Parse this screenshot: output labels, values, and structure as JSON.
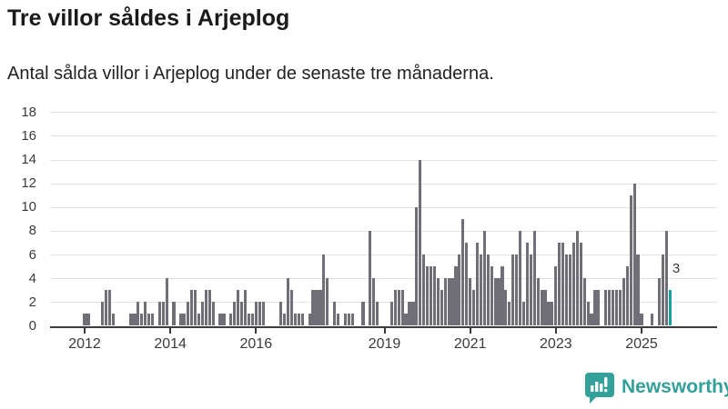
{
  "header": {
    "title": "Tre villor såldes i Arjeplog",
    "subtitle": "Antal sålda villor i Arjeplog under de senaste tre månaderna."
  },
  "footer": {
    "brand": "Newsworthy",
    "logo_icon": "speech-bubble-bar-chart-icon"
  },
  "colors": {
    "bar": "#706f78",
    "highlight": "#16a1a5",
    "brand": "#33a09a",
    "axis": "#3b3b3b",
    "grid": "#e3e3e3",
    "title_text": "#1a1a1a",
    "tick_text": "#3b3b3b"
  },
  "chart_data": {
    "type": "bar",
    "title": "Tre villor såldes i Arjeplog",
    "subtitle": "Antal sålda villor i Arjeplog under de senaste tre månaderna.",
    "unit": "sålda villor per månad",
    "start_month": "2012-01",
    "end_month": "2025-09",
    "values": [
      1,
      1,
      0,
      0,
      0,
      2,
      3,
      3,
      1,
      0,
      0,
      0,
      0,
      1,
      1,
      2,
      1,
      2,
      1,
      1,
      0,
      2,
      2,
      4,
      0,
      2,
      0,
      1,
      1,
      2,
      3,
      3,
      1,
      2,
      3,
      3,
      2,
      0,
      1,
      1,
      0,
      1,
      2,
      3,
      2,
      3,
      1,
      1,
      2,
      2,
      2,
      0,
      0,
      0,
      0,
      2,
      1,
      4,
      3,
      1,
      1,
      1,
      0,
      1,
      3,
      3,
      3,
      6,
      4,
      0,
      2,
      1,
      0,
      1,
      1,
      1,
      0,
      0,
      2,
      0,
      8,
      4,
      2,
      0,
      0,
      0,
      2,
      3,
      3,
      3,
      1,
      2,
      2,
      10,
      14,
      6,
      5,
      5,
      5,
      4,
      3,
      4,
      4,
      4,
      5,
      6,
      9,
      7,
      4,
      3,
      7,
      6,
      8,
      6,
      5,
      4,
      4,
      5,
      3,
      2,
      6,
      6,
      8,
      2,
      7,
      6,
      8,
      4,
      3,
      3,
      2,
      2,
      5,
      7,
      7,
      6,
      6,
      7,
      8,
      7,
      4,
      2,
      1,
      3,
      3,
      0,
      3,
      3,
      3,
      3,
      3,
      4,
      5,
      11,
      12,
      6,
      1,
      0,
      0,
      1,
      0,
      4,
      6,
      8,
      3
    ],
    "x_tick_labels": [
      "2012",
      "2014",
      "2016",
      "2019",
      "2021",
      "2023",
      "2025"
    ],
    "x_tick_years": [
      2012,
      2014,
      2016,
      2019,
      2021,
      2023,
      2025
    ],
    "y_ticks": [
      0,
      2,
      4,
      6,
      8,
      10,
      12,
      14,
      16,
      18
    ],
    "ylim": [
      0,
      18
    ],
    "grid": true,
    "legend": "none",
    "highlight_last": true,
    "highlight_label": "3"
  }
}
